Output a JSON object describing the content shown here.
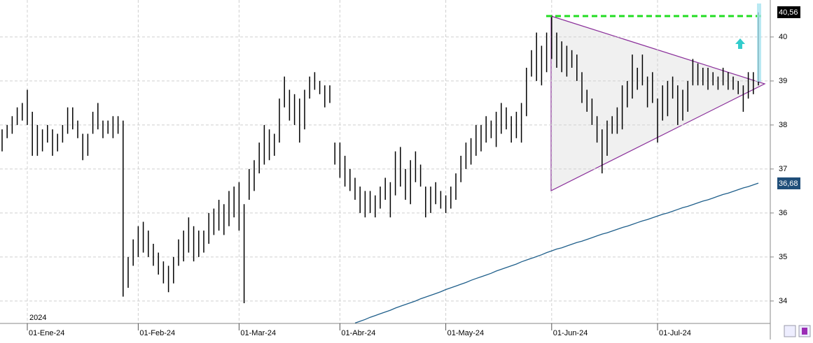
{
  "chart_data": {
    "type": "ohlc",
    "categories": [
      null,
      null,
      null,
      null,
      null,
      "01-Ene-24",
      null,
      null,
      null,
      null,
      null,
      null,
      null,
      null,
      null,
      null,
      null,
      null,
      null,
      null,
      null,
      null,
      null,
      null,
      null,
      null,
      null,
      "01-Feb-24",
      null,
      null,
      null,
      null,
      null,
      null,
      null,
      null,
      null,
      null,
      null,
      null,
      null,
      null,
      null,
      null,
      null,
      null,
      null,
      "01-Mar-24",
      null,
      null,
      null,
      null,
      null,
      null,
      null,
      null,
      null,
      null,
      null,
      null,
      null,
      null,
      null,
      null,
      null,
      null,
      null,
      "01-Abr-24",
      null,
      null,
      null,
      null,
      null,
      null,
      null,
      null,
      null,
      null,
      null,
      null,
      null,
      null,
      null,
      null,
      null,
      null,
      null,
      null,
      "01-May-24",
      null,
      null,
      null,
      null,
      null,
      null,
      null,
      null,
      null,
      null,
      null,
      null,
      null,
      null,
      null,
      null,
      null,
      null,
      null,
      null,
      "01-Jun-24",
      null,
      null,
      null,
      null,
      null,
      null,
      null,
      null,
      null,
      null,
      null,
      null,
      null,
      null,
      null,
      null,
      null,
      null,
      null,
      null,
      "01-Jul-24",
      null,
      null,
      null,
      null,
      null,
      null,
      null,
      null,
      null,
      null,
      null,
      null,
      null,
      null,
      null,
      null,
      null,
      null,
      null,
      null
    ],
    "high": [
      37.9,
      38.0,
      38.2,
      38.4,
      38.5,
      38.8,
      38.3,
      38.0,
      37.9,
      38.0,
      37.9,
      37.8,
      38.0,
      38.4,
      38.4,
      38.1,
      37.8,
      37.8,
      38.3,
      38.5,
      38.1,
      38.1,
      38.2,
      38.2,
      38.1,
      35.0,
      35.4,
      35.7,
      35.8,
      35.6,
      35.3,
      35.1,
      34.9,
      34.8,
      35.0,
      35.4,
      35.6,
      35.9,
      35.7,
      35.6,
      35.6,
      36.0,
      36.1,
      36.3,
      36.2,
      36.5,
      36.6,
      36.7,
      36.2,
      37.0,
      37.2,
      37.6,
      38.0,
      37.9,
      37.8,
      38.6,
      39.1,
      38.8,
      38.7,
      38.6,
      38.8,
      39.1,
      39.2,
      39.0,
      38.9,
      38.9,
      37.6,
      37.6,
      37.3,
      37.0,
      36.8,
      36.6,
      36.5,
      36.5,
      36.4,
      36.6,
      36.8,
      36.7,
      37.4,
      37.5,
      37.0,
      37.2,
      37.4,
      37.1,
      36.6,
      36.6,
      36.7,
      36.5,
      36.4,
      36.6,
      36.9,
      37.3,
      37.6,
      37.7,
      38.0,
      38.0,
      38.2,
      38.1,
      38.3,
      38.5,
      38.4,
      38.2,
      38.3,
      38.5,
      39.3,
      39.7,
      40.1,
      39.8,
      40.1,
      40.5,
      40.1,
      39.9,
      39.8,
      39.7,
      39.6,
      39.2,
      38.8,
      38.6,
      38.2,
      37.9,
      38.1,
      38.2,
      38.4,
      38.9,
      39.0,
      39.6,
      39.3,
      39.6,
      39.1,
      39.2,
      38.6,
      38.9,
      39.0,
      39.1,
      38.9,
      38.8,
      39.0,
      39.5,
      39.4,
      39.3,
      39.3,
      39.2,
      39.1,
      39.3,
      39.2,
      39.1,
      39.0,
      38.9,
      39.2,
      39.2,
      40.56
    ],
    "low": [
      37.4,
      37.7,
      37.8,
      38.0,
      38.1,
      38.0,
      37.3,
      37.3,
      37.4,
      37.6,
      37.3,
      37.4,
      37.6,
      37.8,
      37.9,
      37.7,
      37.2,
      37.3,
      37.8,
      37.9,
      37.7,
      37.8,
      37.7,
      37.8,
      34.1,
      34.3,
      34.8,
      35.0,
      35.1,
      35.0,
      34.8,
      34.6,
      34.4,
      34.2,
      34.4,
      34.8,
      34.9,
      35.1,
      34.9,
      35.0,
      35.1,
      35.3,
      35.5,
      35.6,
      35.5,
      35.7,
      35.9,
      35.6,
      33.95,
      36.3,
      36.5,
      36.9,
      37.1,
      37.2,
      37.3,
      37.6,
      38.4,
      38.1,
      38.0,
      37.6,
      37.9,
      38.6,
      38.8,
      38.7,
      38.4,
      38.5,
      37.1,
      36.8,
      36.6,
      36.5,
      36.3,
      36.0,
      35.9,
      36.0,
      35.9,
      36.1,
      36.3,
      35.9,
      36.4,
      36.6,
      36.3,
      36.2,
      36.7,
      36.6,
      35.9,
      36.0,
      36.2,
      36.1,
      36.0,
      36.1,
      36.3,
      36.7,
      37.0,
      37.1,
      37.3,
      37.4,
      37.6,
      37.7,
      37.5,
      37.8,
      37.9,
      37.6,
      37.7,
      37.6,
      38.2,
      39.1,
      39.0,
      38.9,
      39.2,
      39.5,
      39.3,
      39.2,
      39.1,
      39.3,
      39.0,
      38.5,
      38.3,
      38.0,
      37.6,
      36.9,
      37.3,
      37.8,
      37.8,
      37.9,
      38.4,
      38.6,
      38.8,
      38.9,
      38.4,
      38.5,
      37.6,
      38.1,
      38.2,
      38.6,
      38.0,
      38.1,
      38.3,
      38.9,
      38.9,
      38.9,
      38.8,
      38.9,
      38.8,
      38.9,
      38.8,
      38.8,
      38.7,
      38.3,
      38.6,
      38.7,
      38.9
    ],
    "ma": [
      null,
      null,
      null,
      null,
      null,
      null,
      null,
      null,
      null,
      null,
      null,
      null,
      null,
      null,
      null,
      null,
      null,
      null,
      null,
      null,
      null,
      null,
      null,
      null,
      null,
      null,
      null,
      null,
      null,
      null,
      null,
      null,
      null,
      null,
      null,
      null,
      null,
      null,
      null,
      null,
      null,
      null,
      null,
      null,
      null,
      null,
      null,
      null,
      null,
      null,
      null,
      null,
      null,
      null,
      null,
      null,
      null,
      null,
      null,
      null,
      null,
      null,
      null,
      null,
      null,
      null,
      null,
      null,
      null,
      null,
      33.5,
      33.54,
      33.58,
      33.63,
      33.67,
      33.71,
      33.75,
      33.79,
      33.84,
      33.88,
      33.92,
      33.96,
      34.0,
      34.05,
      34.09,
      34.13,
      34.17,
      34.21,
      34.26,
      34.3,
      34.34,
      34.38,
      34.42,
      34.47,
      34.51,
      34.55,
      34.59,
      34.63,
      34.68,
      34.72,
      34.76,
      34.8,
      34.84,
      34.89,
      34.93,
      34.97,
      35.01,
      35.05,
      35.1,
      35.14,
      35.18,
      35.21,
      35.25,
      35.29,
      35.33,
      35.36,
      35.4,
      35.44,
      35.48,
      35.52,
      35.55,
      35.59,
      35.63,
      35.67,
      35.7,
      35.74,
      35.78,
      35.82,
      35.85,
      35.89,
      35.93,
      35.97,
      36.0,
      36.04,
      36.08,
      36.12,
      36.15,
      36.19,
      36.23,
      36.27,
      36.3,
      36.34,
      36.38,
      36.42,
      36.45,
      36.49,
      36.53,
      36.57,
      36.6,
      36.64,
      36.68
    ],
    "last_price_label": "40,56",
    "ma_label": "36,68",
    "year_label": "2024",
    "bar_color": "#000000",
    "ma_color": "#1f5f8b",
    "ylim": [
      33.49,
      40.84
    ],
    "yticks": [
      34,
      35,
      36,
      37,
      38,
      39,
      40
    ],
    "grid": true
  }
}
